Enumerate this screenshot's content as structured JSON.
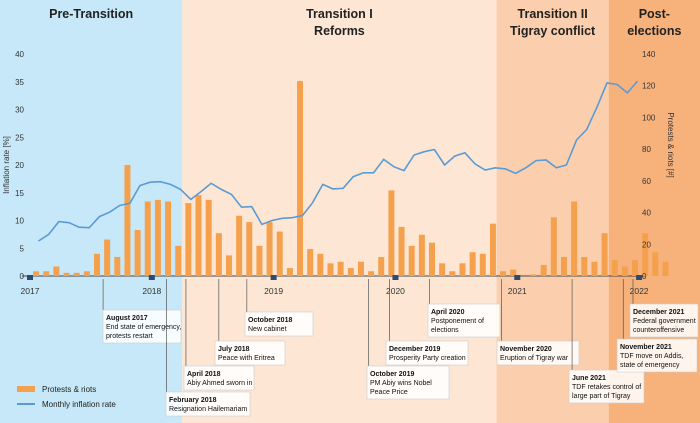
{
  "chart_data": {
    "type": "bar+line",
    "title": "",
    "phases": [
      {
        "label": [
          "Pre-Transition"
        ],
        "start": 2017.0,
        "end": 2018.25,
        "color": "#c6e8f8"
      },
      {
        "label": [
          "Transition I",
          "Reforms"
        ],
        "start": 2018.25,
        "end": 2020.83,
        "color": "#fde7d4"
      },
      {
        "label": [
          "Transition II",
          "Tigray conflict"
        ],
        "start": 2020.83,
        "end": 2021.75,
        "color": "#fbcfad"
      },
      {
        "label": [
          "Post-",
          "elections"
        ],
        "start": 2021.75,
        "end": 2022.5,
        "color": "#f7b27c"
      }
    ],
    "x_ticks": [
      "2017",
      "2018",
      "2019",
      "2020",
      "2021",
      "2022"
    ],
    "x_tick_values": [
      2017,
      2018,
      2019,
      2020,
      2021,
      2022
    ],
    "y_left": {
      "label": "Inflation rate [%]",
      "min": 0,
      "max": 40,
      "ticks": [
        0,
        5,
        10,
        15,
        20,
        25,
        30,
        35,
        40
      ]
    },
    "y_right": {
      "label": "Protests & riots [#]",
      "min": 0,
      "max": 140,
      "ticks": [
        0,
        20,
        40,
        60,
        80,
        100,
        120,
        140
      ]
    },
    "series": [
      {
        "name": "Protests & riots",
        "type": "bar",
        "axis": "right",
        "color": "#f5a04d",
        "values": [
          3,
          3,
          6,
          2,
          2,
          3,
          14,
          23,
          12,
          70,
          29,
          47,
          48,
          47,
          19,
          46,
          51,
          48,
          27,
          13,
          38,
          34,
          19,
          34,
          28,
          5,
          123,
          17,
          14,
          8,
          9,
          5,
          9,
          3,
          12,
          54,
          31,
          19,
          26,
          21,
          8,
          3,
          8,
          15,
          14,
          33,
          3,
          4,
          0,
          1,
          7,
          37,
          12,
          47,
          12,
          9,
          27,
          10,
          6,
          10,
          27,
          15,
          9
        ]
      },
      {
        "name": "Monthly inflation rate",
        "type": "line",
        "axis": "left",
        "color": "#5b9bd5",
        "values": [
          6.3,
          7.5,
          9.8,
          9.6,
          8.8,
          8.7,
          10.7,
          11.5,
          12.7,
          13.1,
          16.3,
          16.9,
          17.0,
          16.5,
          15.6,
          13.8,
          15.2,
          16.7,
          15.6,
          14.7,
          12.4,
          12.5,
          9.3,
          10.0,
          10.4,
          10.5,
          10.9,
          13.2,
          16.5,
          15.7,
          15.8,
          17.9,
          18.6,
          18.6,
          21.0,
          19.7,
          19.0,
          21.8,
          22.4,
          22.8,
          20.0,
          21.6,
          22.2,
          20.2,
          19.1,
          19.5,
          19.3,
          18.5,
          19.5,
          20.8,
          20.9,
          19.5,
          20.0,
          24.5,
          26.4,
          30.4,
          34.8,
          34.5,
          33.0,
          35.1
        ]
      }
    ],
    "events": [
      {
        "text": [
          "August 2017",
          "End state of emergency,",
          "protests restart"
        ],
        "x": 2017.6
      },
      {
        "text": [
          "February 2018",
          "Resignation Hailemariam"
        ],
        "x": 2018.12
      },
      {
        "text": [
          "April 2018",
          "Abiy Ahmed sworn in"
        ],
        "x": 2018.28
      },
      {
        "text": [
          "July 2018",
          "Peace with Eritrea"
        ],
        "x": 2018.55
      },
      {
        "text": [
          "October 2018",
          "New cabinet"
        ],
        "x": 2018.78
      },
      {
        "text": [
          "October 2019",
          "PM Abiy wins Nobel",
          "Peace Price"
        ],
        "x": 2019.78
      },
      {
        "text": [
          "December 2019",
          "Prosperity Party creation"
        ],
        "x": 2019.95
      },
      {
        "text": [
          "April 2020",
          "Postponement of",
          "elections"
        ],
        "x": 2020.28
      },
      {
        "text": [
          "November 2020",
          "Eruption of Tigray war"
        ],
        "x": 2020.87
      },
      {
        "text": [
          "June 2021",
          "TDF retakes control of",
          "large part of Tigray"
        ],
        "x": 2021.45
      },
      {
        "text": [
          "November 2021",
          "TDF move on Addis,",
          "state of emergency"
        ],
        "x": 2021.87
      },
      {
        "text": [
          "December 2021",
          "Federal government",
          "counteroffensive"
        ],
        "x": 2021.95
      }
    ],
    "legend": [
      {
        "name": "Protests & riots",
        "kind": "bar",
        "color": "#f5a04d"
      },
      {
        "name": "Monthly inflation rate",
        "kind": "line",
        "color": "#5b9bd5"
      }
    ],
    "legend_position": "bottom-left"
  }
}
